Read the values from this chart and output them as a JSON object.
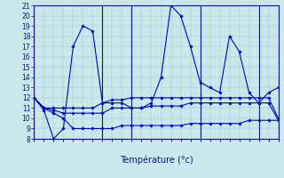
{
  "xlabel": "Température (°c)",
  "ylim": [
    8,
    21
  ],
  "yticks": [
    8,
    9,
    10,
    11,
    12,
    13,
    14,
    15,
    16,
    17,
    18,
    19,
    20,
    21
  ],
  "bg_color": "#c8e8ec",
  "line_color": "#0000cc",
  "lines": [
    {
      "x": [
        0,
        1,
        2,
        3,
        4,
        5,
        6,
        7,
        8,
        9,
        10,
        11,
        12,
        13,
        14,
        15,
        16,
        17,
        18,
        19,
        20,
        21,
        22,
        23,
        24,
        25
      ],
      "y": [
        12,
        10.8,
        8,
        9,
        17,
        19,
        18.5,
        11.5,
        11.5,
        11.5,
        11,
        11,
        11.5,
        14,
        21,
        20,
        17,
        13.5,
        13,
        12.5,
        18,
        16.5,
        12.5,
        11.5,
        12.5,
        13
      ]
    },
    {
      "x": [
        0,
        1,
        2,
        3,
        4,
        5,
        6,
        7,
        8,
        9,
        10,
        11,
        12,
        13,
        14,
        15,
        16,
        17,
        18,
        19,
        20,
        21,
        22,
        23,
        24,
        25
      ],
      "y": [
        12,
        11,
        11,
        11,
        11,
        11,
        11,
        11.5,
        11.8,
        11.8,
        12,
        12,
        12,
        12,
        12,
        12,
        12,
        12,
        12,
        12,
        12,
        12,
        12,
        12,
        12,
        10
      ]
    },
    {
      "x": [
        0,
        1,
        2,
        3,
        4,
        5,
        6,
        7,
        8,
        9,
        10,
        11,
        12,
        13,
        14,
        15,
        16,
        17,
        18,
        19,
        20,
        21,
        22,
        23,
        24,
        25
      ],
      "y": [
        12,
        11,
        10.8,
        10.5,
        10.5,
        10.5,
        10.5,
        10.5,
        11,
        11,
        11,
        11,
        11.2,
        11.2,
        11.2,
        11.2,
        11.5,
        11.5,
        11.5,
        11.5,
        11.5,
        11.5,
        11.5,
        11.5,
        11.5,
        9.8
      ]
    },
    {
      "x": [
        0,
        1,
        2,
        3,
        4,
        5,
        6,
        7,
        8,
        9,
        10,
        11,
        12,
        13,
        14,
        15,
        16,
        17,
        18,
        19,
        20,
        21,
        22,
        23,
        24,
        25
      ],
      "y": [
        12,
        11,
        10.5,
        10,
        9,
        9,
        9,
        9,
        9,
        9.3,
        9.3,
        9.3,
        9.3,
        9.3,
        9.3,
        9.3,
        9.5,
        9.5,
        9.5,
        9.5,
        9.5,
        9.5,
        9.8,
        9.8,
        9.8,
        9.8
      ]
    }
  ],
  "xlim": [
    0,
    25
  ],
  "day_sep_x": [
    0,
    7,
    10,
    17,
    23,
    26
  ]
}
